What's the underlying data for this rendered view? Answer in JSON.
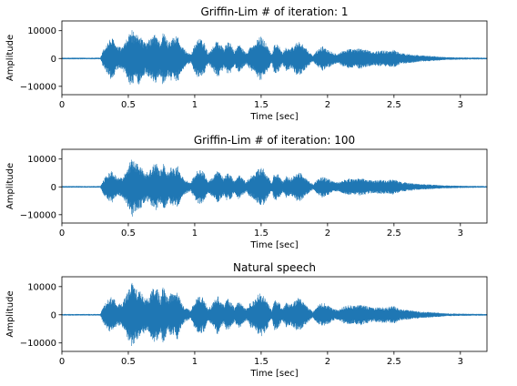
{
  "chart_data": [
    {
      "type": "line",
      "title": "Griffin-Lim # of iteration: 1",
      "xlabel": "Time [sec]",
      "ylabel": "Amplitude",
      "xlim": [
        0,
        3.2
      ],
      "ylim": [
        -13000,
        13500
      ],
      "xticks": [
        0,
        0.5,
        1,
        1.5,
        2,
        2.5,
        3
      ],
      "xtick_labels": [
        "0",
        "0.5",
        "1",
        "1.5",
        "2",
        "2.5",
        "3"
      ],
      "yticks": [
        10000,
        0,
        -10000
      ],
      "ytick_labels": [
        "10000",
        "0",
        "−10000"
      ],
      "color": "#1f77b4",
      "series": [
        {
          "x": [
            0.0,
            0.29,
            0.31,
            0.34,
            0.37,
            0.39,
            0.41,
            0.45,
            0.48,
            0.5,
            0.53,
            0.55,
            0.58,
            0.6,
            0.63,
            0.66,
            0.69,
            0.71,
            0.74,
            0.76,
            0.78,
            0.8,
            0.82,
            0.85,
            0.87,
            0.89,
            0.91,
            0.93,
            0.97,
            1.0,
            1.03,
            1.07,
            1.1,
            1.14,
            1.17,
            1.2,
            1.22,
            1.24,
            1.27,
            1.3,
            1.33,
            1.36,
            1.39,
            1.42,
            1.45,
            1.48,
            1.5,
            1.52,
            1.55,
            1.58,
            1.6,
            1.63,
            1.66,
            1.69,
            1.72,
            1.75,
            1.78,
            1.8,
            1.83,
            1.86,
            1.89,
            1.92,
            1.96,
            2.0,
            2.04,
            2.08,
            2.12,
            2.16,
            2.2,
            2.25,
            2.3,
            2.35,
            2.4,
            2.45,
            2.5,
            2.55,
            2.6,
            2.65,
            2.7,
            2.76,
            2.82,
            2.9,
            3.0,
            3.2
          ],
          "y": [
            300,
            300,
            3000,
            5500,
            7500,
            7000,
            4500,
            4000,
            6000,
            8500,
            10500,
            8000,
            9500,
            7500,
            5500,
            7000,
            8500,
            9000,
            6000,
            9500,
            8500,
            6000,
            8000,
            7500,
            9000,
            5500,
            4000,
            3000,
            1500,
            5000,
            7500,
            6000,
            2000,
            4500,
            7000,
            5000,
            3500,
            6000,
            5500,
            2500,
            5500,
            3500,
            2000,
            4500,
            5000,
            7500,
            8000,
            7000,
            4500,
            1500,
            5500,
            5000,
            2000,
            4500,
            3500,
            5000,
            6500,
            6000,
            4000,
            2500,
            1000,
            3000,
            4500,
            3500,
            2200,
            1800,
            3000,
            3500,
            3300,
            3800,
            3000,
            2500,
            3000,
            2800,
            3200,
            2000,
            1700,
            1500,
            1100,
            1000,
            800,
            500,
            400,
            300
          ]
        }
      ]
    },
    {
      "type": "line",
      "title": "Griffin-Lim # of iteration: 100",
      "xlabel": "Time [sec]",
      "ylabel": "Amplitude",
      "xlim": [
        0,
        3.2
      ],
      "ylim": [
        -13000,
        13500
      ],
      "xticks": [
        0,
        0.5,
        1,
        1.5,
        2,
        2.5,
        3
      ],
      "xtick_labels": [
        "0",
        "0.5",
        "1",
        "1.5",
        "2",
        "2.5",
        "3"
      ],
      "yticks": [
        10000,
        0,
        -10000
      ],
      "ytick_labels": [
        "10000",
        "0",
        "−10000"
      ],
      "color": "#1f77b4",
      "series": [
        {
          "x": [
            0.0,
            0.29,
            0.31,
            0.34,
            0.37,
            0.39,
            0.41,
            0.45,
            0.48,
            0.5,
            0.53,
            0.55,
            0.58,
            0.6,
            0.63,
            0.66,
            0.69,
            0.71,
            0.74,
            0.76,
            0.78,
            0.8,
            0.82,
            0.85,
            0.87,
            0.89,
            0.91,
            0.93,
            0.97,
            1.0,
            1.03,
            1.07,
            1.1,
            1.14,
            1.17,
            1.2,
            1.22,
            1.24,
            1.27,
            1.3,
            1.33,
            1.36,
            1.39,
            1.42,
            1.45,
            1.48,
            1.5,
            1.52,
            1.55,
            1.58,
            1.6,
            1.63,
            1.66,
            1.69,
            1.72,
            1.75,
            1.78,
            1.8,
            1.83,
            1.86,
            1.89,
            1.92,
            1.96,
            2.0,
            2.04,
            2.08,
            2.12,
            2.16,
            2.2,
            2.25,
            2.3,
            2.35,
            2.4,
            2.45,
            2.5,
            2.55,
            2.6,
            2.65,
            2.7,
            2.76,
            2.82,
            2.9,
            3.0,
            3.2
          ],
          "y": [
            300,
            300,
            2500,
            4500,
            6000,
            5500,
            3500,
            3500,
            5500,
            8000,
            11000,
            9000,
            8000,
            7500,
            5000,
            6000,
            8000,
            8500,
            5500,
            8500,
            7500,
            5000,
            7000,
            6500,
            8000,
            5000,
            3500,
            2500,
            1500,
            4500,
            6500,
            5500,
            2000,
            4000,
            6000,
            4500,
            3000,
            5000,
            4500,
            2000,
            4500,
            3000,
            1800,
            4000,
            4500,
            6500,
            7000,
            6500,
            4000,
            1500,
            5000,
            4500,
            1800,
            4000,
            3000,
            4500,
            5500,
            5000,
            3500,
            2200,
            900,
            2500,
            4000,
            3000,
            2000,
            1600,
            2500,
            3000,
            2800,
            3200,
            2500,
            2200,
            2600,
            2400,
            2800,
            1800,
            1500,
            1300,
            1000,
            900,
            700,
            500,
            400,
            300
          ]
        }
      ]
    },
    {
      "type": "line",
      "title": "Natural speech",
      "xlabel": "Time [sec]",
      "ylabel": "Amplitude",
      "xlim": [
        0,
        3.2
      ],
      "ylim": [
        -13000,
        13500
      ],
      "xticks": [
        0,
        0.5,
        1,
        1.5,
        2,
        2.5,
        3
      ],
      "xtick_labels": [
        "0",
        "0.5",
        "1",
        "1.5",
        "2",
        "2.5",
        "3"
      ],
      "yticks": [
        10000,
        0,
        -10000
      ],
      "ytick_labels": [
        "10000",
        "0",
        "−10000"
      ],
      "color": "#1f77b4",
      "series": [
        {
          "x": [
            0.0,
            0.29,
            0.31,
            0.34,
            0.37,
            0.39,
            0.41,
            0.45,
            0.48,
            0.5,
            0.53,
            0.55,
            0.58,
            0.6,
            0.63,
            0.66,
            0.69,
            0.71,
            0.74,
            0.76,
            0.78,
            0.8,
            0.82,
            0.85,
            0.87,
            0.89,
            0.91,
            0.93,
            0.97,
            1.0,
            1.03,
            1.07,
            1.1,
            1.14,
            1.17,
            1.2,
            1.22,
            1.24,
            1.27,
            1.3,
            1.33,
            1.36,
            1.39,
            1.42,
            1.45,
            1.48,
            1.5,
            1.52,
            1.55,
            1.58,
            1.6,
            1.63,
            1.66,
            1.69,
            1.72,
            1.75,
            1.78,
            1.8,
            1.83,
            1.86,
            1.89,
            1.92,
            1.96,
            2.0,
            2.04,
            2.08,
            2.12,
            2.16,
            2.2,
            2.25,
            2.3,
            2.35,
            2.4,
            2.45,
            2.5,
            2.55,
            2.6,
            2.65,
            2.7,
            2.76,
            2.82,
            2.9,
            3.0,
            3.2
          ],
          "y": [
            300,
            300,
            2800,
            5000,
            6500,
            6000,
            4000,
            4000,
            6500,
            9000,
            12500,
            9500,
            9000,
            8000,
            5500,
            7000,
            10000,
            10500,
            6000,
            10000,
            8500,
            5500,
            8000,
            7000,
            9000,
            5500,
            3500,
            2500,
            1500,
            5000,
            7000,
            6000,
            2000,
            4500,
            7000,
            5000,
            3500,
            6000,
            5000,
            2500,
            5000,
            3500,
            2000,
            4500,
            5000,
            7500,
            8000,
            7000,
            4500,
            1500,
            5500,
            5000,
            2000,
            4500,
            3500,
            5000,
            6000,
            5500,
            4000,
            2500,
            1000,
            3000,
            4500,
            3500,
            2200,
            1800,
            3000,
            3500,
            3200,
            3700,
            3000,
            2500,
            3000,
            2800,
            3200,
            2000,
            1700,
            1500,
            1100,
            1000,
            800,
            500,
            400,
            300
          ]
        }
      ]
    }
  ]
}
